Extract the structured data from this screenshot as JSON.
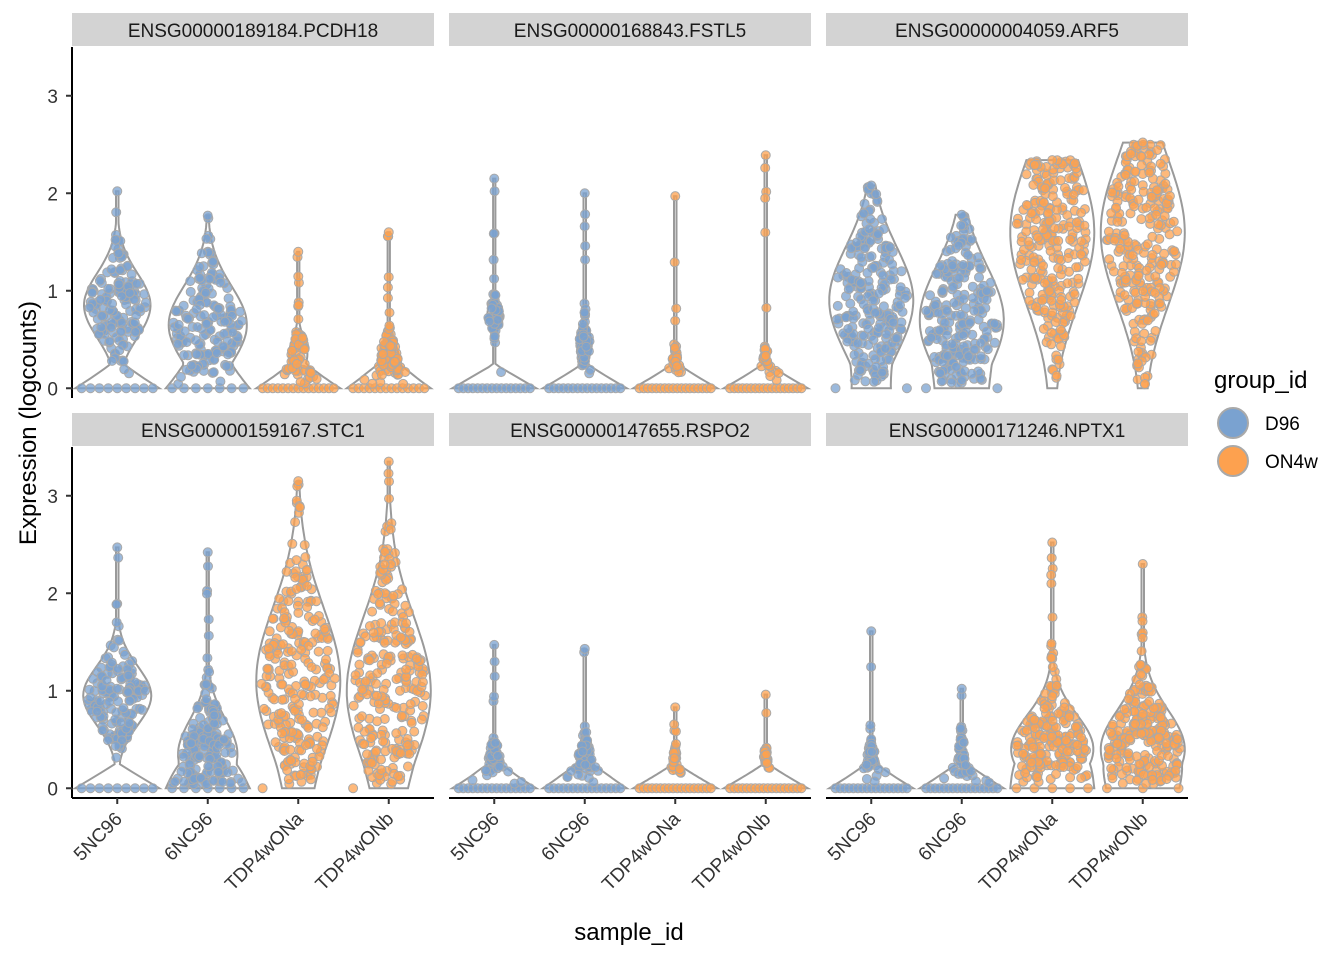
{
  "chart_data": {
    "type": "violin",
    "xlabel": "sample_id",
    "ylabel": "Expression (logcounts)",
    "ylim": [
      -0.1,
      3.5
    ],
    "yticks": [
      0,
      1,
      2,
      3
    ],
    "categories": [
      "5NC96",
      "6NC96",
      "TDP4wONa",
      "TDP4wONb"
    ],
    "category_group": [
      "D96",
      "D96",
      "ON4w",
      "ON4w"
    ],
    "legend": {
      "title": "group_id",
      "position": "right",
      "entries": [
        {
          "label": "D96",
          "color": "#7aa2d0"
        },
        {
          "label": "ON4w",
          "color": "#fda14f"
        }
      ]
    },
    "colors": {
      "D96": "#7aa2d0",
      "ON4w": "#fda14f",
      "violin_outline": "#9a9a9a",
      "strip": "#d3d3d3"
    },
    "panels": [
      {
        "title": "ENSG00000189184.PCDH18",
        "violins": [
          {
            "sample": "5NC96",
            "max": 2.02,
            "median": 0.85,
            "spread": 0.33,
            "zero_frac": 0.45
          },
          {
            "sample": "6NC96",
            "max": 1.77,
            "median": 0.65,
            "spread": 0.4,
            "zero_frac": 0.35
          },
          {
            "sample": "TDP4wONa",
            "max": 1.4,
            "median": 0.35,
            "spread": 0.16,
            "zero_frac": 0.75
          },
          {
            "sample": "TDP4wONb",
            "max": 1.6,
            "median": 0.3,
            "spread": 0.16,
            "zero_frac": 0.72
          }
        ]
      },
      {
        "title": "ENSG00000168843.FSTL5",
        "violins": [
          {
            "sample": "5NC96",
            "max": 2.15,
            "median": 0.75,
            "spread": 0.12,
            "zero_frac": 0.8
          },
          {
            "sample": "6NC96",
            "max": 2.0,
            "median": 0.45,
            "spread": 0.14,
            "zero_frac": 0.8
          },
          {
            "sample": "TDP4wONa",
            "max": 1.97,
            "median": 0.3,
            "spread": 0.08,
            "zero_frac": 0.9
          },
          {
            "sample": "TDP4wONb",
            "max": 2.39,
            "median": 0.3,
            "spread": 0.08,
            "zero_frac": 0.9
          }
        ]
      },
      {
        "title": "ENSG00000004059.ARF5",
        "violins": [
          {
            "sample": "5NC96",
            "max": 2.08,
            "median": 0.9,
            "spread": 0.55,
            "zero_frac": 0.12
          },
          {
            "sample": "6NC96",
            "max": 1.78,
            "median": 0.7,
            "spread": 0.55,
            "zero_frac": 0.12
          },
          {
            "sample": "TDP4wONa",
            "max": 2.34,
            "median": 1.6,
            "spread": 0.75,
            "zero_frac": 0.01
          },
          {
            "sample": "TDP4wONb",
            "max": 2.52,
            "median": 1.6,
            "spread": 0.75,
            "zero_frac": 0.01
          }
        ]
      },
      {
        "title": "ENSG00000159167.STC1",
        "violins": [
          {
            "sample": "5NC96",
            "max": 2.47,
            "median": 0.95,
            "spread": 0.3,
            "zero_frac": 0.45
          },
          {
            "sample": "6NC96",
            "max": 2.42,
            "median": 0.35,
            "spread": 0.35,
            "zero_frac": 0.35
          },
          {
            "sample": "TDP4wONa",
            "max": 3.15,
            "median": 1.1,
            "spread": 0.75,
            "zero_frac": 0.03
          },
          {
            "sample": "TDP4wONb",
            "max": 3.35,
            "median": 1.0,
            "spread": 0.75,
            "zero_frac": 0.03
          }
        ]
      },
      {
        "title": "ENSG00000147655.RSPO2",
        "violins": [
          {
            "sample": "5NC96",
            "max": 1.47,
            "median": 0.3,
            "spread": 0.12,
            "zero_frac": 0.8
          },
          {
            "sample": "6NC96",
            "max": 1.43,
            "median": 0.3,
            "spread": 0.16,
            "zero_frac": 0.78
          },
          {
            "sample": "TDP4wONa",
            "max": 0.83,
            "median": 0.3,
            "spread": 0.08,
            "zero_frac": 0.92
          },
          {
            "sample": "TDP4wONb",
            "max": 0.96,
            "median": 0.3,
            "spread": 0.08,
            "zero_frac": 0.92
          }
        ]
      },
      {
        "title": "ENSG00000171246.NPTX1",
        "violins": [
          {
            "sample": "5NC96",
            "max": 1.61,
            "median": 0.3,
            "spread": 0.12,
            "zero_frac": 0.85
          },
          {
            "sample": "6NC96",
            "max": 1.02,
            "median": 0.3,
            "spread": 0.14,
            "zero_frac": 0.85
          },
          {
            "sample": "TDP4wONa",
            "max": 2.52,
            "median": 0.4,
            "spread": 0.35,
            "zero_frac": 0.25
          },
          {
            "sample": "TDP4wONb",
            "max": 2.3,
            "median": 0.4,
            "spread": 0.4,
            "zero_frac": 0.15
          }
        ]
      }
    ]
  }
}
